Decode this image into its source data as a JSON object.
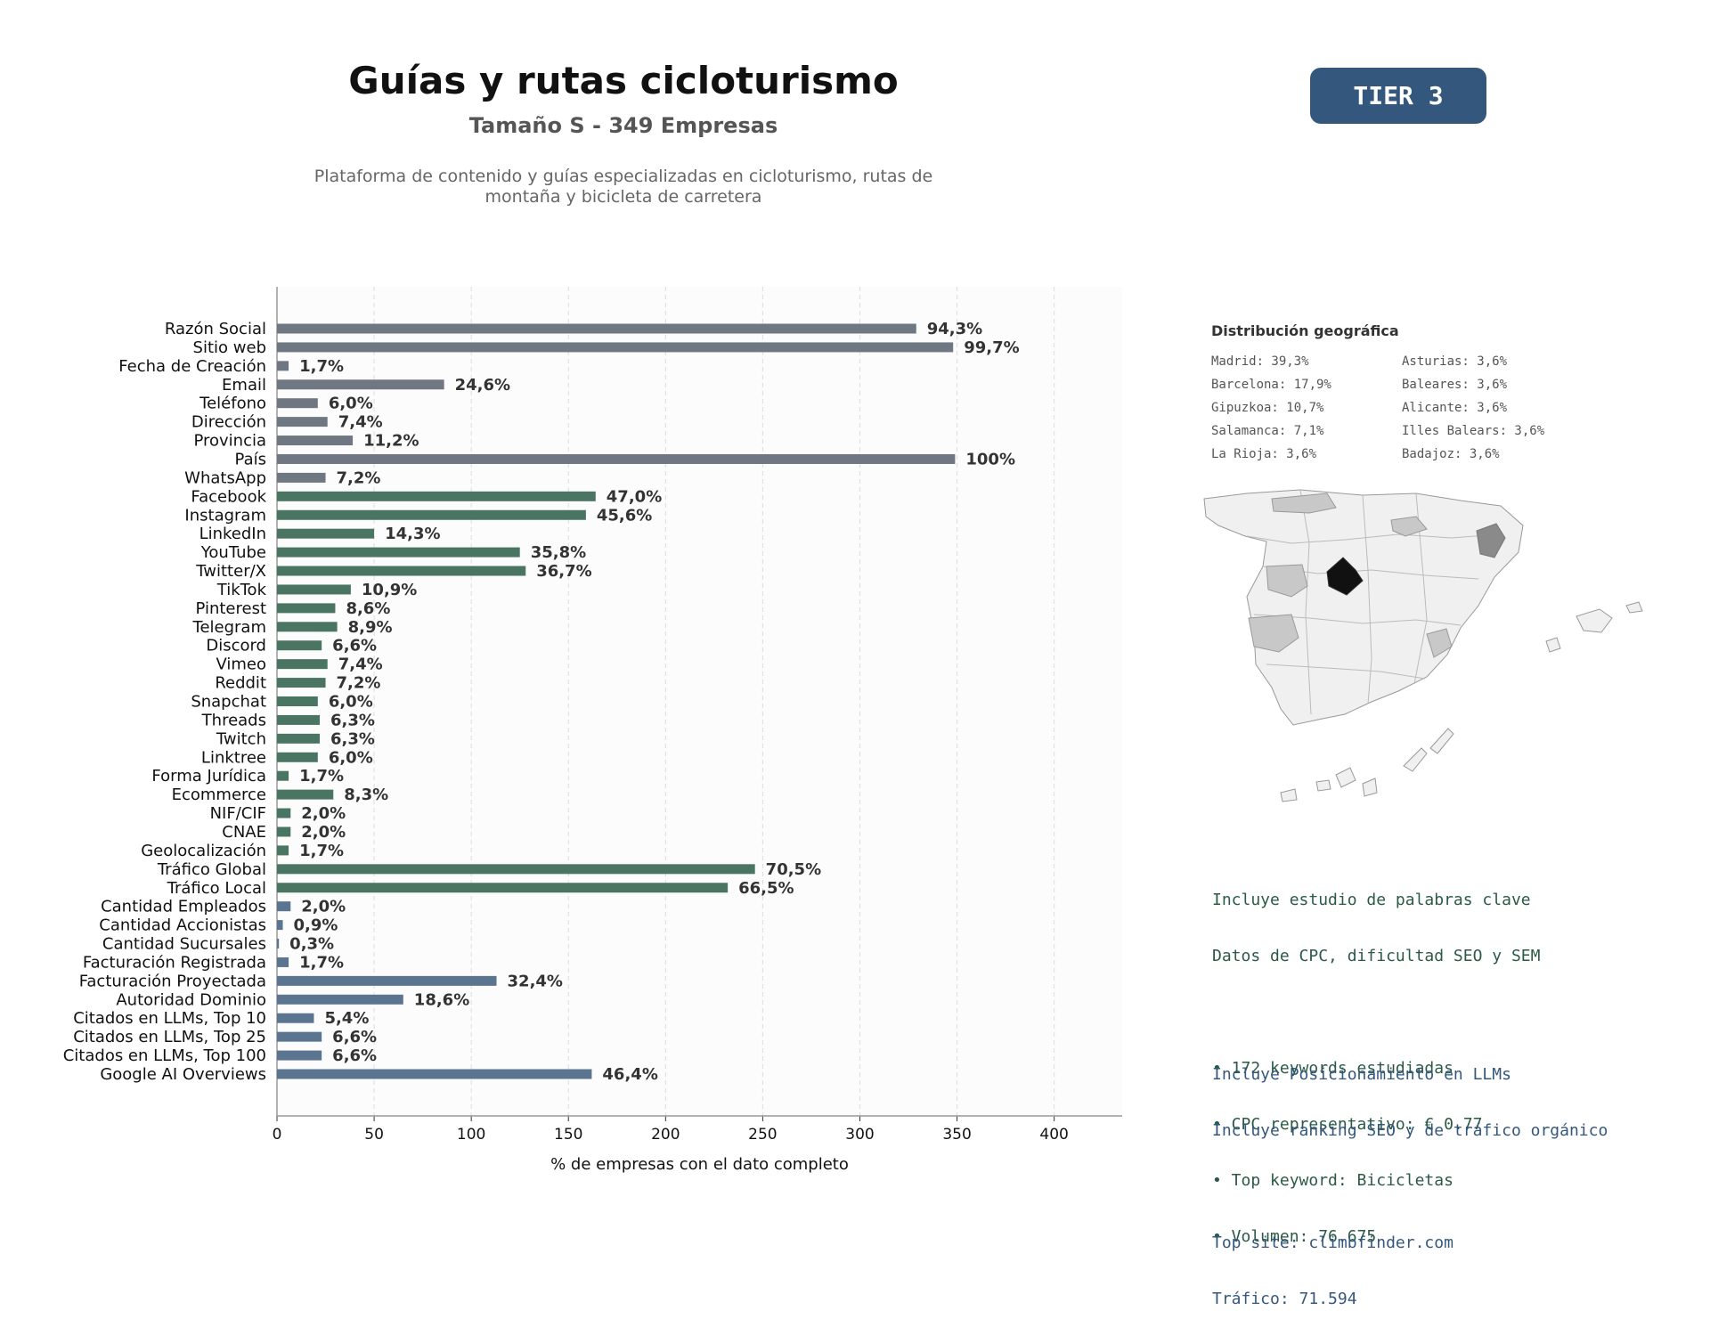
{
  "header": {
    "title": "Guías y rutas cicloturismo",
    "subtitle": "Tamaño S - 349 Empresas",
    "description": "Plataforma de contenido y guías especializadas en cicloturismo, rutas de montaña y bicicleta de carretera",
    "tier": "TIER 3"
  },
  "chart_data": {
    "type": "bar",
    "orientation": "horizontal",
    "xlabel": "% de empresas con el dato completo",
    "xlim": [
      0,
      435
    ],
    "xticks": [
      0,
      50,
      100,
      150,
      200,
      250,
      300,
      350,
      400
    ],
    "grid": true,
    "colors": {
      "general": "#6f7782",
      "social": "#4a7562",
      "financial": "#5b7590"
    },
    "categories": [
      "Razón Social",
      "Sitio web",
      "Fecha de Creación",
      "Email",
      "Teléfono",
      "Dirección",
      "Provincia",
      "País",
      "WhatsApp",
      "Facebook",
      "Instagram",
      "LinkedIn",
      "YouTube",
      "Twitter/X",
      "TikTok",
      "Pinterest",
      "Telegram",
      "Discord",
      "Vimeo",
      "Reddit",
      "Snapchat",
      "Threads",
      "Twitch",
      "Linktree",
      "Forma Jurídica",
      "Ecommerce",
      "NIF/CIF",
      "CNAE",
      "Geolocalización",
      "Tráfico Global",
      "Tráfico Local",
      "Cantidad Empleados",
      "Cantidad Accionistas",
      "Cantidad Sucursales",
      "Facturación Registrada",
      "Facturación Proyectada",
      "Autoridad Dominio",
      "Citados en LLMs, Top 10",
      "Citados en LLMs, Top 25",
      "Citados en LLMs, Top 100",
      "Google AI Overviews"
    ],
    "values": [
      329,
      348,
      6,
      86,
      21,
      26,
      39,
      349,
      25,
      164,
      159,
      50,
      125,
      128,
      38,
      30,
      31,
      23,
      26,
      25,
      21,
      22,
      22,
      21,
      6,
      29,
      7,
      7,
      6,
      246,
      232,
      7,
      3,
      1,
      6,
      113,
      65,
      19,
      23,
      23,
      162
    ],
    "labels": [
      "94,3%",
      "99,7%",
      "1,7%",
      "24,6%",
      "6,0%",
      "7,4%",
      "11,2%",
      "100%",
      "7,2%",
      "47,0%",
      "45,6%",
      "14,3%",
      "35,8%",
      "36,7%",
      "10,9%",
      "8,6%",
      "8,9%",
      "6,6%",
      "7,4%",
      "7,2%",
      "6,0%",
      "6,3%",
      "6,3%",
      "6,0%",
      "1,7%",
      "8,3%",
      "2,0%",
      "2,0%",
      "1,7%",
      "70,5%",
      "66,5%",
      "2,0%",
      "0,9%",
      "0,3%",
      "1,7%",
      "32,4%",
      "18,6%",
      "5,4%",
      "6,6%",
      "6,6%",
      "46,4%"
    ],
    "groups": [
      "general",
      "general",
      "general",
      "general",
      "general",
      "general",
      "general",
      "general",
      "general",
      "social",
      "social",
      "social",
      "social",
      "social",
      "social",
      "social",
      "social",
      "social",
      "social",
      "social",
      "social",
      "social",
      "social",
      "social",
      "social",
      "social",
      "social",
      "social",
      "social",
      "social",
      "social",
      "financial",
      "financial",
      "financial",
      "financial",
      "financial",
      "financial",
      "financial",
      "financial",
      "financial",
      "financial"
    ]
  },
  "geo": {
    "title": "Distribución geográfica",
    "items": [
      "Madrid: 39,3%",
      "Asturias: 3,6%",
      "Barcelona: 17,9%",
      "Baleares: 3,6%",
      "Gipuzkoa: 10,7%",
      "Alicante: 3,6%",
      "Salamanca: 7,1%",
      "Illes Balears: 3,6%",
      "La Rioja: 3,6%",
      "Badajoz: 3,6%"
    ]
  },
  "seo": {
    "lines": [
      "Incluye estudio de palabras clave",
      "Datos de CPC, dificultad SEO y SEM",
      "",
      "• 172 keywords estudiadas",
      "• CPC representativo: € 0.77",
      "• Top keyword: Bicicletas",
      "• Volumen: 76.675"
    ]
  },
  "llm": {
    "lines": [
      "Incluye Posicionamiento en LLMs",
      "Incluye ranking SEO y de tráfico orgánico",
      "",
      "Top site: climbfinder.com",
      "Tráfico: 71.594"
    ]
  }
}
